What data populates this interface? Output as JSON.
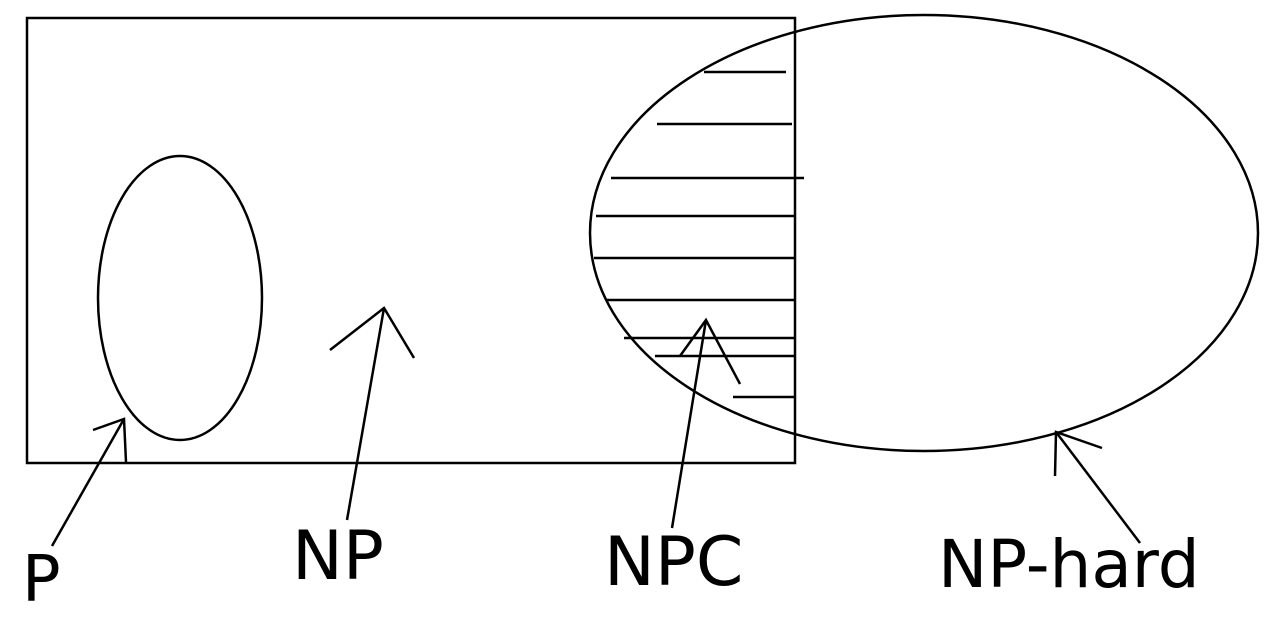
{
  "labels": {
    "p": "P",
    "np": "NP",
    "npc": "NPC",
    "np_hard": "NP-hard"
  },
  "colors": {
    "background": "#ffffff",
    "ink": "#000000"
  }
}
